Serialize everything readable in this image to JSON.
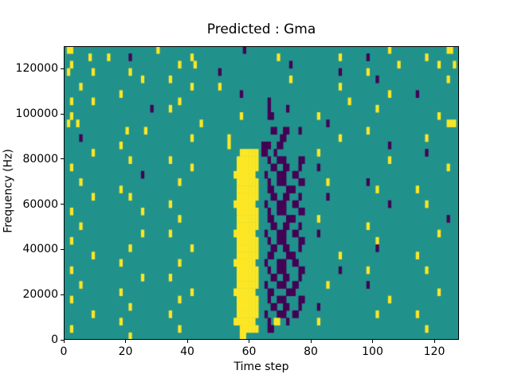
{
  "chart_data": {
    "type": "heatmap",
    "title": "Predicted : Gma",
    "xlabel": "Time step",
    "ylabel": "Frequency (Hz)",
    "x_range": [
      0,
      128
    ],
    "y_range": [
      0,
      130000
    ],
    "x_ticks": [
      0,
      20,
      40,
      60,
      80,
      100,
      120
    ],
    "y_ticks": [
      0,
      20000,
      40000,
      60000,
      80000,
      100000,
      120000
    ],
    "colormap": "viridis",
    "legend": false,
    "grid_lines": false,
    "colors": {
      "mid": "#21918c",
      "high": "#fde725",
      "low": "#440154"
    },
    "cell_values": {
      ".": "mid (background)",
      "y": "high (yellow)",
      "p": "low (dark purple)"
    },
    "annotations": "Dense yellow vertical band at time steps ~57-64 from ~3000 Hz up to ~85000 Hz; dark purple vertical streaks at time steps ~66-78; sparse yellow and purple cells scattered elsewhere on teal background.",
    "grid": {
      "cols": 128,
      "rows": 40,
      "orientation": "rows listed top (high frequency) to bottom (0 Hz); each row is 8 segment keys of 16 columns each",
      "segments": {
        "E": "................",
        "Y2": "..y.............",
        "Y5": ".....y..........",
        "Y9": ".........y......",
        "Y12": "............y...",
        "Y14": "..............y.",
        "P2": "..p.............",
        "P5": ".....p..........",
        "P9": ".........p......",
        "P12": "............p...",
        "YY": "..y......y......",
        "B7": "........yyyyyyy.",
        "B6": ".........yyyyyy.",
        "B7b": ".......yyyyyyy..",
        "S1": "..p..ppp....pp..",
        "S2": "...pp..pp...p...",
        "S3": ".p...ppp..pp....",
        "S4": "..pp....ppp.....",
        "PP2": "..p.....p.......",
        "M2": "..pp............",
        "M3": "..p.yy..p.......",
        "MP": "ppp..pp.........",
        "MQ": "pp..p...........",
        "X1": ".yy.............",
        "X2": "..........p.....",
        "X3": "............yy..",
        "X4": "........y.....y.",
        "X5": ".....y....y.....",
        "X6": ".........y....y.",
        "X7": ".y.......y......",
        "X8": ".y..y...........",
        "X9": "............yyy.",
        "X10": "....y.....y.....",
        "X11": "......pp........",
        "X12": ".........yy....."
      },
      "rows_top_to_bottom": [
        [
          "X1",
          "Y14",
          "E",
          "X2",
          "E",
          "E",
          "Y9",
          "X3"
        ],
        [
          "X4",
          "P5",
          "Y9",
          "E",
          "Y5",
          "Y9",
          "P2",
          "Y5"
        ],
        [
          "Y2",
          "E",
          "X5",
          "E",
          "P9",
          "E",
          "Y12",
          "X6"
        ],
        [
          "X7",
          "Y5",
          "E",
          "P2",
          "E",
          "P9",
          "Y2",
          "E"
        ],
        [
          "E",
          "Y9",
          "Y2",
          "E",
          "Y9",
          "E",
          "P5",
          "Y12"
        ],
        [
          "Y5",
          "E",
          "Y9",
          "Y2",
          "E",
          "Y9",
          "E",
          "E"
        ],
        [
          "E",
          "Y2",
          "E",
          "P9",
          "E",
          "E",
          "Y9",
          "P2"
        ],
        [
          "YY",
          "E",
          "Y5",
          "E",
          "P2",
          "Y12",
          "E",
          "E"
        ],
        [
          "E",
          "P12",
          "Y2",
          "E",
          "PP2",
          "E",
          "Y5",
          "E"
        ],
        [
          "Y2",
          "E",
          "E",
          "Y9",
          "M2",
          "Y2",
          "E",
          "Y9"
        ],
        [
          "X8",
          "E",
          "Y12",
          "E",
          "E",
          "P5",
          "E",
          "X9"
        ],
        [
          "E",
          "X10",
          "E",
          "E",
          "S2",
          "E",
          "Y2",
          "E"
        ],
        [
          "P5",
          "E",
          "Y9",
          "Y5",
          "X11",
          "Y9",
          "E",
          "Y5"
        ],
        [
          "E",
          "Y2",
          "E",
          "Y5",
          "MP",
          "E",
          "P9",
          "E"
        ],
        [
          "Y9",
          "E",
          "E",
          "B6",
          "MQ",
          "Y2",
          "E",
          "P5"
        ],
        [
          "E",
          "Y5",
          "Y2",
          "B7",
          "S1",
          "E",
          "Y9",
          "E"
        ],
        [
          "Y2",
          "E",
          "Y9",
          "B7",
          "S2",
          "P2",
          "E",
          "Y12"
        ],
        [
          "E",
          "P9",
          "E",
          "B7b",
          "S3",
          "E",
          "E",
          "E"
        ],
        [
          "Y5",
          "E",
          "Y5",
          "B7",
          "S1",
          "Y5",
          "P2",
          "E"
        ],
        [
          "E",
          "Y2",
          "E",
          "B7",
          "S4",
          "E",
          "Y5",
          "Y2"
        ],
        [
          "Y9",
          "Y5",
          "E",
          "B7",
          "S2",
          "P5",
          "E",
          "E"
        ],
        [
          "E",
          "E",
          "Y2",
          "B7b",
          "S3",
          "E",
          "P9",
          "Y5"
        ],
        [
          "Y2",
          "Y9",
          "E",
          "B7",
          "S1",
          "E",
          "E",
          "E"
        ],
        [
          "E",
          "E",
          "Y5",
          "B7",
          "S4",
          "Y2",
          "E",
          "P12"
        ],
        [
          "Y5",
          "E",
          "E",
          "B7",
          "S2",
          "E",
          "Y2",
          "E"
        ],
        [
          "E",
          "Y9",
          "Y2",
          "B7b",
          "S3",
          "P2",
          "E",
          "Y9"
        ],
        [
          "Y2",
          "E",
          "E",
          "B7",
          "S1",
          "E",
          "Y5",
          "E"
        ],
        [
          "E",
          "Y5",
          "Y9",
          "B7",
          "S2",
          "E",
          "P5",
          "E"
        ],
        [
          "Y9",
          "E",
          "E",
          "B7",
          "S4",
          "Y9",
          "E",
          "Y2"
        ],
        [
          "E",
          "Y2",
          "Y5",
          "B7b",
          "S3",
          "E",
          "E",
          "E"
        ],
        [
          "Y2",
          "E",
          "E",
          "B7",
          "S1",
          "P9",
          "Y2",
          "Y5"
        ],
        [
          "E",
          "Y9",
          "Y2",
          "B7",
          "S2",
          "E",
          "E",
          "E"
        ],
        [
          "Y5",
          "E",
          "E",
          "B7",
          "S3",
          "Y5",
          "P2",
          "E"
        ],
        [
          "E",
          "Y2",
          "Y9",
          "B7b",
          "S4",
          "E",
          "E",
          "Y9"
        ],
        [
          "Y2",
          "E",
          "Y5",
          "B7",
          "S1",
          "E",
          "Y9",
          "E"
        ],
        [
          "E",
          "Y5",
          "E",
          "B7",
          "S2",
          "P2",
          "E",
          "E"
        ],
        [
          "Y9",
          "E",
          "Y2",
          "B7",
          "S3",
          "E",
          "Y5",
          "Y2"
        ],
        [
          "E",
          "Y2",
          "E",
          "B7b",
          "M3",
          "Y2",
          "E",
          "E"
        ],
        [
          "Y2",
          "E",
          "Y5",
          "B6",
          "M2",
          "E",
          "E",
          "Y5"
        ],
        [
          "E",
          "Y5",
          "E",
          "X12",
          "E",
          "E",
          "E",
          "E"
        ]
      ]
    }
  }
}
